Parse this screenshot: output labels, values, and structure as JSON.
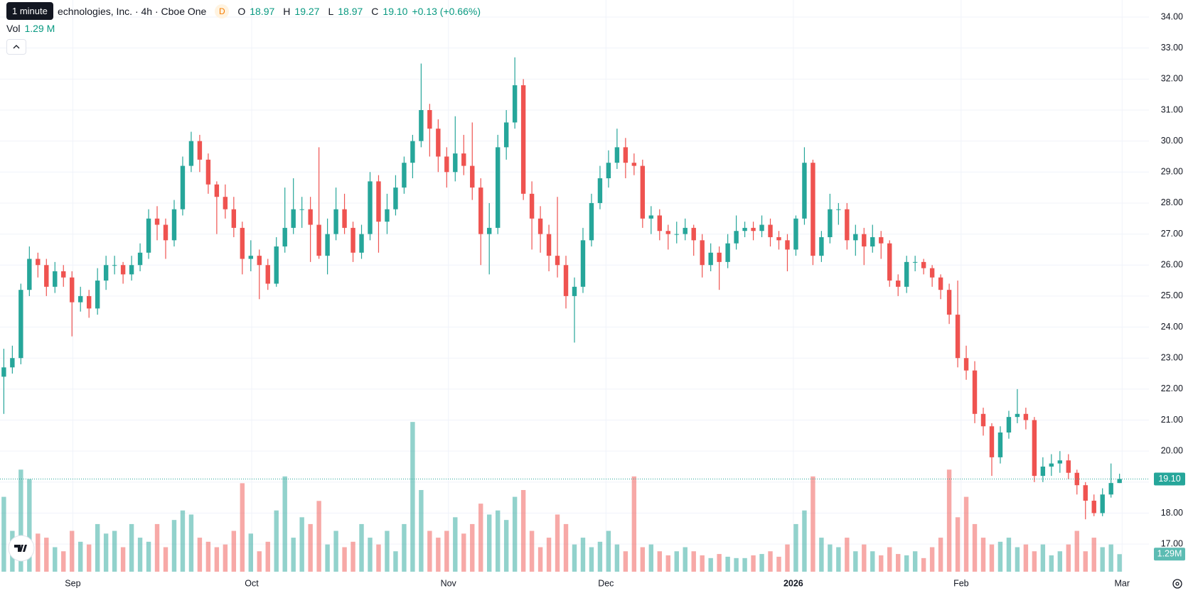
{
  "chart_data": {
    "type": "candlestick",
    "title": "echnologies, Inc. · 4h · Cboe One",
    "tooltip": "1 minute",
    "badge": "D",
    "legend": {
      "open_key": "O",
      "open": "18.97",
      "high_key": "H",
      "high": "19.27",
      "low_key": "L",
      "low": "18.97",
      "close_key": "C",
      "close": "19.10",
      "change": "+0.13 (+0.66%)",
      "vol_key": "Vol",
      "vol": "1.29 M"
    },
    "volume_tag": "1.29M",
    "up_color": "#26a69a",
    "down_color": "#ef5350",
    "grid": true,
    "xlim": [
      -0.45,
      134.45
    ],
    "xticks": [
      {
        "value": 8.1,
        "label": "Sep"
      },
      {
        "value": 29.1,
        "label": "Oct"
      },
      {
        "value": 52.2,
        "label": "Nov"
      },
      {
        "value": 70.7,
        "label": "Dec"
      },
      {
        "value": 92.7,
        "label": "2026"
      },
      {
        "value": 112.4,
        "label": "Feb"
      },
      {
        "value": 131.3,
        "label": "Mar"
      }
    ],
    "ylim": [
      16.11,
      34.55
    ],
    "yticks": [
      {
        "value": 17,
        "label": "17.00"
      },
      {
        "value": 18,
        "label": "18.00"
      },
      {
        "value": 19,
        "label": "19.00"
      },
      {
        "value": 20,
        "label": "20.00"
      },
      {
        "value": 21,
        "label": "21.00"
      },
      {
        "value": 22,
        "label": "22.00"
      },
      {
        "value": 23,
        "label": "23.00"
      },
      {
        "value": 24,
        "label": "24.00"
      },
      {
        "value": 25,
        "label": "25.00"
      },
      {
        "value": 26,
        "label": "26.00"
      },
      {
        "value": 27,
        "label": "27.00"
      },
      {
        "value": 28,
        "label": "28.00"
      },
      {
        "value": 29,
        "label": "29.00"
      },
      {
        "value": 30,
        "label": "30.00"
      },
      {
        "value": 31,
        "label": "31.00"
      },
      {
        "value": 32,
        "label": "32.00"
      },
      {
        "value": 33,
        "label": "33.00"
      },
      {
        "value": 34,
        "label": "34.00"
      }
    ],
    "volume_lim": [
      0,
      42
    ],
    "ohlc": [
      [
        22.4,
        23.3,
        21.2,
        22.7
      ],
      [
        22.7,
        23.4,
        22.5,
        23.0
      ],
      [
        23.0,
        25.4,
        22.8,
        25.2
      ],
      [
        25.2,
        26.6,
        25.0,
        26.2
      ],
      [
        26.2,
        26.4,
        25.6,
        26.0
      ],
      [
        26.0,
        26.2,
        25.0,
        25.3
      ],
      [
        25.3,
        26.1,
        25.1,
        25.8
      ],
      [
        25.8,
        26.0,
        25.3,
        25.6
      ],
      [
        25.6,
        25.8,
        23.7,
        24.8
      ],
      [
        24.8,
        25.3,
        24.5,
        25.0
      ],
      [
        25.0,
        25.2,
        24.3,
        24.6
      ],
      [
        24.6,
        25.9,
        24.4,
        25.5
      ],
      [
        25.5,
        26.3,
        25.2,
        26.0
      ],
      [
        26.0,
        26.3,
        25.7,
        26.0
      ],
      [
        26.0,
        26.1,
        25.4,
        25.7
      ],
      [
        25.7,
        26.3,
        25.5,
        26.0
      ],
      [
        26.0,
        26.7,
        25.8,
        26.4
      ],
      [
        26.4,
        27.8,
        26.2,
        27.5
      ],
      [
        27.5,
        27.9,
        26.8,
        27.3
      ],
      [
        27.3,
        27.5,
        26.2,
        26.8
      ],
      [
        26.8,
        28.1,
        26.6,
        27.8
      ],
      [
        27.8,
        29.5,
        27.6,
        29.2
      ],
      [
        29.2,
        30.3,
        29.0,
        30.0
      ],
      [
        30.0,
        30.2,
        29.0,
        29.4
      ],
      [
        29.4,
        29.6,
        28.3,
        28.6
      ],
      [
        28.6,
        28.7,
        27.0,
        28.2
      ],
      [
        28.2,
        28.6,
        27.5,
        27.8
      ],
      [
        27.8,
        28.2,
        26.9,
        27.2
      ],
      [
        27.2,
        27.4,
        25.7,
        26.2
      ],
      [
        26.2,
        26.8,
        25.8,
        26.3
      ],
      [
        26.3,
        26.5,
        24.9,
        26.0
      ],
      [
        26.0,
        26.2,
        25.2,
        25.4
      ],
      [
        25.4,
        26.9,
        25.3,
        26.6
      ],
      [
        26.6,
        28.5,
        26.4,
        27.2
      ],
      [
        27.2,
        28.8,
        27.0,
        27.8
      ],
      [
        27.8,
        28.2,
        27.2,
        27.8
      ],
      [
        27.8,
        28.2,
        26.1,
        27.3
      ],
      [
        27.3,
        29.8,
        26.2,
        26.3
      ],
      [
        26.3,
        27.5,
        25.7,
        27.0
      ],
      [
        27.0,
        28.5,
        26.8,
        27.8
      ],
      [
        27.8,
        28.3,
        27.0,
        27.2
      ],
      [
        27.2,
        27.4,
        26.1,
        26.4
      ],
      [
        26.4,
        27.3,
        26.2,
        27.0
      ],
      [
        27.0,
        29.0,
        26.8,
        28.7
      ],
      [
        28.7,
        28.9,
        26.4,
        27.4
      ],
      [
        27.4,
        28.3,
        27.0,
        27.8
      ],
      [
        27.8,
        28.9,
        27.6,
        28.5
      ],
      [
        28.5,
        29.5,
        28.3,
        29.3
      ],
      [
        29.3,
        30.2,
        28.8,
        30.0
      ],
      [
        30.0,
        32.5,
        29.8,
        31.0
      ],
      [
        31.0,
        31.2,
        29.5,
        30.4
      ],
      [
        30.4,
        30.7,
        29.0,
        29.5
      ],
      [
        29.5,
        29.8,
        28.5,
        29.0
      ],
      [
        29.0,
        30.8,
        28.7,
        29.6
      ],
      [
        29.6,
        30.2,
        28.9,
        29.2
      ],
      [
        29.2,
        30.6,
        28.1,
        28.5
      ],
      [
        28.5,
        28.8,
        26.0,
        27.0
      ],
      [
        27.0,
        28.0,
        25.7,
        27.2
      ],
      [
        27.2,
        30.2,
        27.0,
        29.8
      ],
      [
        29.8,
        31.0,
        29.4,
        30.6
      ],
      [
        30.6,
        32.7,
        30.4,
        31.8
      ],
      [
        31.8,
        32.0,
        28.1,
        28.3
      ],
      [
        28.3,
        28.7,
        26.5,
        27.5
      ],
      [
        27.5,
        27.9,
        26.4,
        27.0
      ],
      [
        27.0,
        27.3,
        25.8,
        26.3
      ],
      [
        26.3,
        28.2,
        25.6,
        26.0
      ],
      [
        26.0,
        26.3,
        24.6,
        25.0
      ],
      [
        25.0,
        25.6,
        23.5,
        25.3
      ],
      [
        25.3,
        27.2,
        25.1,
        26.8
      ],
      [
        26.8,
        28.3,
        26.6,
        28.0
      ],
      [
        28.0,
        29.2,
        27.8,
        28.8
      ],
      [
        28.8,
        29.7,
        28.5,
        29.3
      ],
      [
        29.3,
        30.4,
        29.1,
        29.8
      ],
      [
        29.8,
        30.1,
        28.8,
        29.3
      ],
      [
        29.3,
        29.6,
        28.9,
        29.2
      ],
      [
        29.2,
        29.4,
        27.2,
        27.5
      ],
      [
        27.5,
        27.9,
        27.0,
        27.6
      ],
      [
        27.6,
        27.8,
        26.8,
        27.1
      ],
      [
        27.1,
        27.3,
        26.5,
        27.0
      ],
      [
        27.0,
        27.4,
        26.7,
        27.0
      ],
      [
        27.0,
        27.5,
        26.8,
        27.2
      ],
      [
        27.2,
        27.3,
        26.3,
        26.8
      ],
      [
        26.8,
        27.0,
        25.6,
        26.0
      ],
      [
        26.0,
        26.7,
        25.8,
        26.4
      ],
      [
        26.4,
        26.6,
        25.2,
        26.1
      ],
      [
        26.1,
        27.0,
        25.9,
        26.7
      ],
      [
        26.7,
        27.6,
        26.5,
        27.1
      ],
      [
        27.1,
        27.4,
        26.9,
        27.2
      ],
      [
        27.2,
        27.4,
        26.8,
        27.1
      ],
      [
        27.1,
        27.6,
        26.9,
        27.3
      ],
      [
        27.3,
        27.5,
        26.6,
        26.9
      ],
      [
        26.9,
        27.1,
        26.5,
        26.8
      ],
      [
        26.8,
        27.0,
        25.8,
        26.5
      ],
      [
        26.5,
        27.6,
        26.3,
        27.5
      ],
      [
        27.5,
        29.8,
        27.3,
        29.3
      ],
      [
        29.3,
        29.4,
        26.0,
        26.3
      ],
      [
        26.3,
        27.1,
        26.1,
        26.9
      ],
      [
        26.9,
        28.3,
        26.7,
        27.8
      ],
      [
        27.8,
        28.0,
        27.3,
        27.8
      ],
      [
        27.8,
        28.0,
        26.5,
        26.8
      ],
      [
        26.8,
        27.3,
        26.3,
        27.0
      ],
      [
        27.0,
        27.2,
        26.0,
        26.6
      ],
      [
        26.6,
        27.3,
        26.4,
        26.9
      ],
      [
        26.9,
        27.1,
        26.2,
        26.7
      ],
      [
        26.7,
        26.8,
        25.3,
        25.5
      ],
      [
        25.5,
        25.7,
        25.0,
        25.3
      ],
      [
        25.3,
        26.3,
        25.1,
        26.1
      ],
      [
        26.1,
        26.3,
        25.8,
        26.1
      ],
      [
        26.1,
        26.2,
        25.7,
        25.9
      ],
      [
        25.9,
        26.0,
        25.3,
        25.6
      ],
      [
        25.6,
        25.7,
        24.9,
        25.2
      ],
      [
        25.2,
        25.4,
        24.1,
        24.4
      ],
      [
        24.4,
        25.5,
        22.7,
        23.0
      ],
      [
        23.0,
        23.4,
        22.3,
        22.6
      ],
      [
        22.6,
        22.9,
        20.9,
        21.2
      ],
      [
        21.2,
        21.4,
        20.5,
        20.8
      ],
      [
        20.8,
        20.9,
        19.2,
        19.8
      ],
      [
        19.8,
        20.8,
        19.6,
        20.6
      ],
      [
        20.6,
        21.3,
        20.4,
        21.1
      ],
      [
        21.1,
        22.0,
        20.9,
        21.2
      ],
      [
        21.2,
        21.4,
        20.7,
        21.0
      ],
      [
        21.0,
        21.1,
        19.0,
        19.2
      ],
      [
        19.2,
        19.8,
        19.0,
        19.5
      ],
      [
        19.5,
        19.9,
        19.2,
        19.6
      ],
      [
        19.6,
        20.0,
        19.3,
        19.7
      ],
      [
        19.7,
        19.9,
        19.1,
        19.3
      ],
      [
        19.3,
        19.4,
        18.6,
        18.9
      ],
      [
        18.9,
        19.0,
        17.8,
        18.4
      ],
      [
        18.4,
        18.6,
        17.9,
        18.0
      ],
      [
        18.0,
        18.8,
        17.9,
        18.6
      ],
      [
        18.6,
        19.6,
        18.5,
        18.97
      ],
      [
        18.97,
        19.27,
        18.97,
        19.1
      ]
    ],
    "volume": [
      5.5,
      3.0,
      7.5,
      6.8,
      2.8,
      2.5,
      1.8,
      1.5,
      3.0,
      2.2,
      2.0,
      3.5,
      2.8,
      3.0,
      1.8,
      3.5,
      2.5,
      2.2,
      3.5,
      1.8,
      3.8,
      4.5,
      4.2,
      2.5,
      2.2,
      1.8,
      2.0,
      3.0,
      6.5,
      2.8,
      1.5,
      2.2,
      4.5,
      7.0,
      2.5,
      4.0,
      3.5,
      5.2,
      2.0,
      3.0,
      1.8,
      2.2,
      3.5,
      2.5,
      2.0,
      3.0,
      1.5,
      3.5,
      11.0,
      6.0,
      3.0,
      2.5,
      3.0,
      4.0,
      2.8,
      3.5,
      5.0,
      4.2,
      4.5,
      3.8,
      5.5,
      6.0,
      3.0,
      1.8,
      2.5,
      4.2,
      3.5,
      2.0,
      2.5,
      1.8,
      2.2,
      3.0,
      2.0,
      1.5,
      7.0,
      1.8,
      2.0,
      1.5,
      1.2,
      1.5,
      1.8,
      1.5,
      1.2,
      1.0,
      1.3,
      1.1,
      1.0,
      1.0,
      1.2,
      1.3,
      1.5,
      1.1,
      2.0,
      3.5,
      4.5,
      7.0,
      2.5,
      2.0,
      1.8,
      2.5,
      1.5,
      2.0,
      1.5,
      1.2,
      1.8,
      1.3,
      1.2,
      1.5,
      1.0,
      1.8,
      2.5,
      7.5,
      4.0,
      5.5,
      3.5,
      2.5,
      2.0,
      2.2,
      2.5,
      1.8,
      2.0,
      1.5,
      2.0,
      1.2,
      1.5,
      2.0,
      3.0,
      1.5,
      2.5,
      1.8,
      2.0,
      1.29
    ]
  }
}
